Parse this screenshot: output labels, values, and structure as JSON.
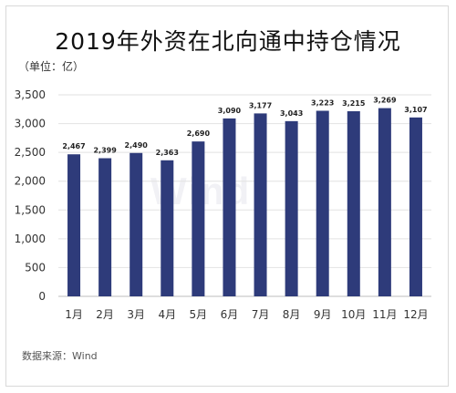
{
  "header": {
    "title": "2019年外资在北向通中持仓情况",
    "unit": "（单位：亿）"
  },
  "footer": {
    "source": "数据来源：Wind"
  },
  "watermark": "Wind",
  "chart_data": {
    "type": "bar",
    "title": "2019年外资在北向通中持仓情况",
    "categories": [
      "1月",
      "2月",
      "3月",
      "4月",
      "5月",
      "6月",
      "7月",
      "8月",
      "9月",
      "10月",
      "11月",
      "12月"
    ],
    "values": [
      2467,
      2399,
      2490,
      2363,
      2690,
      3090,
      3177,
      3043,
      3223,
      3215,
      3269,
      3107
    ],
    "value_labels": [
      "2,467",
      "2,399",
      "2,490",
      "2,363",
      "2,690",
      "3,090",
      "3,177",
      "3,043",
      "3,223",
      "3,215",
      "3,269",
      "3,107"
    ],
    "yticks": [
      0,
      500,
      1000,
      1500,
      2000,
      2500,
      3000,
      3500
    ],
    "ytick_labels": [
      "0",
      "500",
      "1,000",
      "1,500",
      "2,000",
      "2,500",
      "3,000",
      "3,500"
    ],
    "ylim": [
      0,
      3500
    ],
    "grid": true,
    "colors": {
      "bar": "#2e3b7a",
      "grid": "#e2e2e2",
      "axis": "#bdbdbd"
    }
  }
}
